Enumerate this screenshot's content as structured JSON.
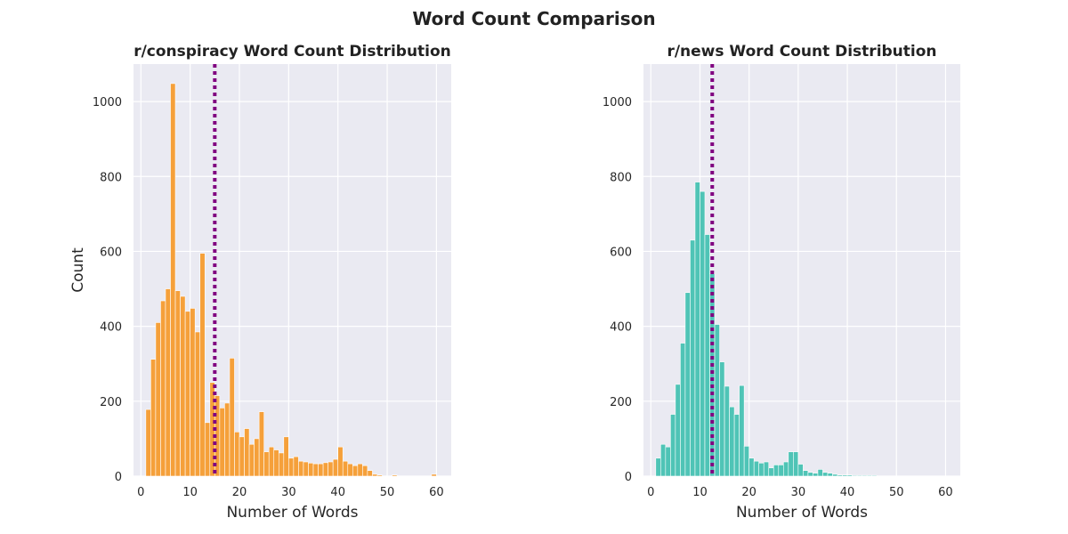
{
  "figure": {
    "title": "Word Count Comparison"
  },
  "chart_data": [
    {
      "type": "bar",
      "title": "r/conspiracy Word Count Distribution",
      "xlabel": "Number of Words",
      "ylabel": "Count",
      "xlim": [
        -1.5,
        63
      ],
      "ylim": [
        0,
        1100
      ],
      "xticks": [
        0,
        10,
        20,
        30,
        40,
        50,
        60
      ],
      "yticks": [
        0,
        200,
        400,
        600,
        800,
        1000
      ],
      "grid": true,
      "bar_color": "#f5a03a",
      "bin_width": 1,
      "bin_starts": [
        1,
        2,
        3,
        4,
        5,
        6,
        7,
        8,
        9,
        10,
        11,
        12,
        13,
        14,
        15,
        16,
        17,
        18,
        19,
        20,
        21,
        22,
        23,
        24,
        25,
        26,
        27,
        28,
        29,
        30,
        31,
        32,
        33,
        34,
        35,
        36,
        37,
        38,
        39,
        40,
        41,
        42,
        43,
        44,
        45,
        46,
        47,
        48,
        49,
        50,
        51,
        52,
        53,
        54,
        55,
        56,
        57,
        58,
        59,
        60
      ],
      "values": [
        178,
        312,
        410,
        468,
        500,
        1048,
        495,
        480,
        440,
        448,
        385,
        595,
        143,
        250,
        215,
        182,
        195,
        315,
        118,
        105,
        127,
        85,
        100,
        172,
        65,
        78,
        70,
        62,
        105,
        48,
        52,
        40,
        38,
        35,
        33,
        33,
        36,
        38,
        45,
        78,
        40,
        33,
        28,
        33,
        28,
        15,
        5,
        3,
        0,
        0,
        3,
        0,
        0,
        0,
        0,
        0,
        0,
        0,
        5,
        0
      ],
      "median_line": {
        "x": 15,
        "color": "#800080",
        "style": "dotted"
      }
    },
    {
      "type": "bar",
      "title": "r/news Word Count Distribution",
      "xlabel": "Number of Words",
      "ylabel": "",
      "xlim": [
        -1.5,
        63
      ],
      "ylim": [
        0,
        1100
      ],
      "xticks": [
        0,
        10,
        20,
        30,
        40,
        50,
        60
      ],
      "yticks": [
        0,
        200,
        400,
        600,
        800,
        1000
      ],
      "grid": true,
      "bar_color": "#4fc4b6",
      "bin_width": 1,
      "bin_starts": [
        1,
        2,
        3,
        4,
        5,
        6,
        7,
        8,
        9,
        10,
        11,
        12,
        13,
        14,
        15,
        16,
        17,
        18,
        19,
        20,
        21,
        22,
        23,
        24,
        25,
        26,
        27,
        28,
        29,
        30,
        31,
        32,
        33,
        34,
        35,
        36,
        37,
        38,
        39,
        40,
        41,
        42,
        43,
        44,
        45,
        46,
        47,
        48,
        49,
        50
      ],
      "values": [
        48,
        85,
        78,
        165,
        245,
        355,
        490,
        630,
        785,
        760,
        645,
        540,
        405,
        305,
        240,
        185,
        165,
        242,
        80,
        48,
        40,
        35,
        38,
        22,
        30,
        30,
        38,
        65,
        65,
        32,
        15,
        10,
        8,
        18,
        10,
        8,
        5,
        3,
        3,
        3,
        2,
        2,
        2,
        2,
        2,
        0,
        0,
        0,
        0,
        0
      ],
      "median_line": {
        "x": 12.5,
        "color": "#800080",
        "style": "dotted"
      }
    }
  ]
}
